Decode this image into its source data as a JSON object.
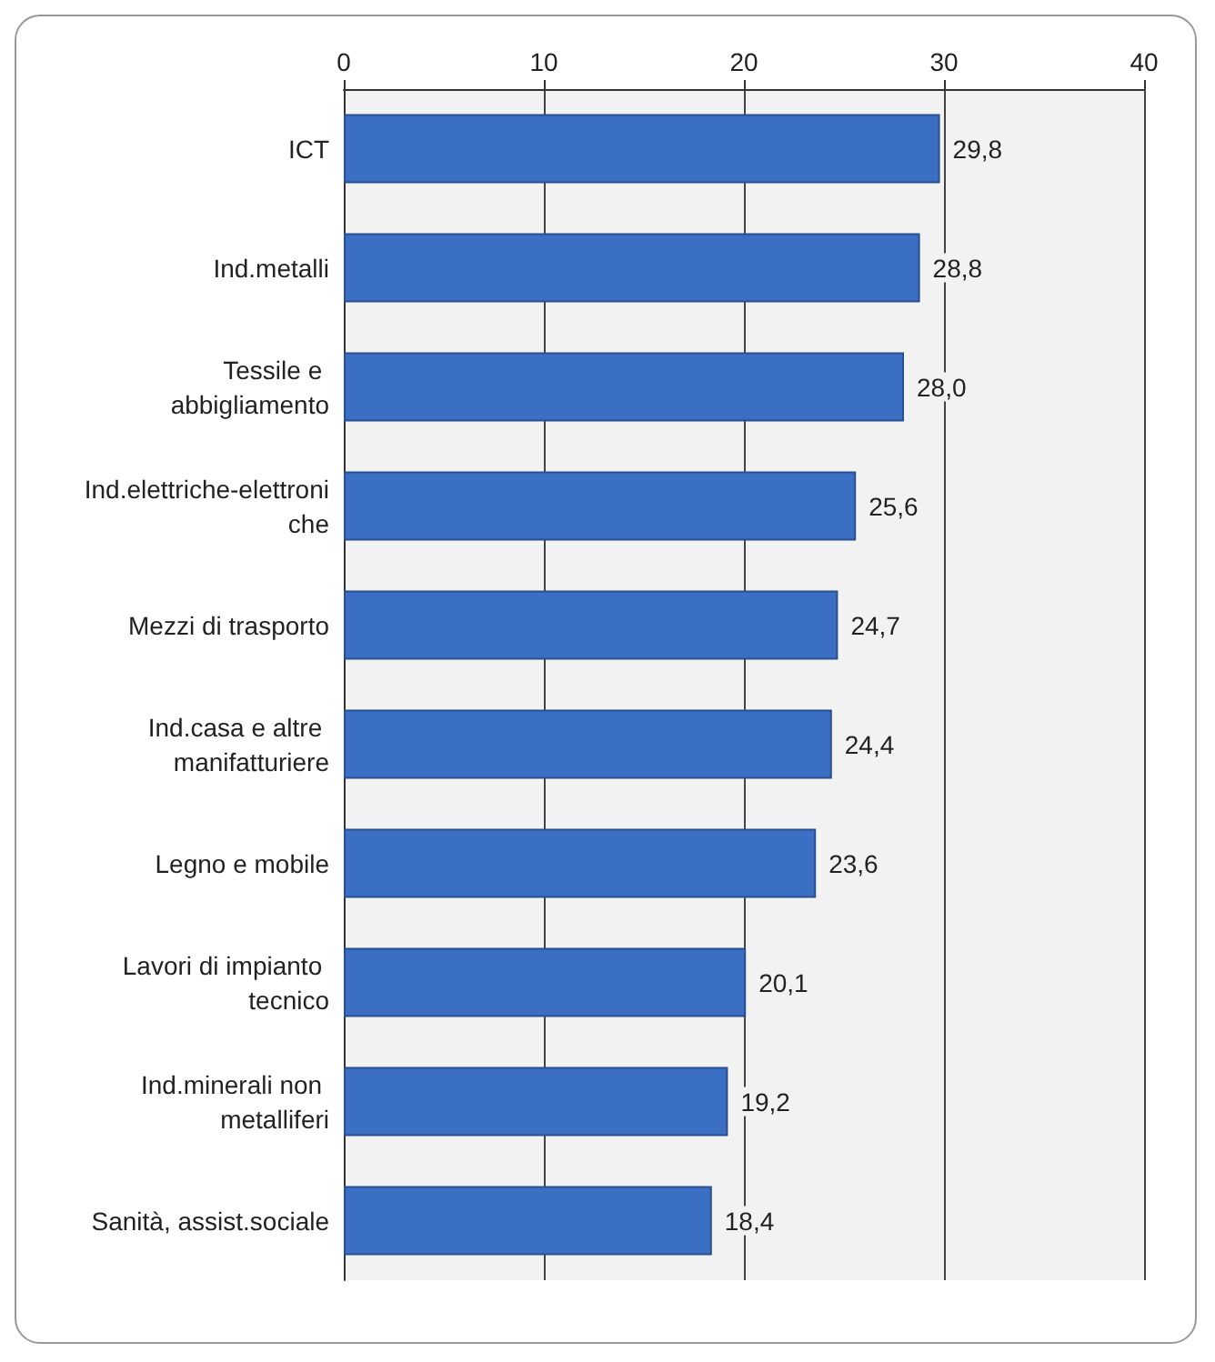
{
  "chart_data": {
    "type": "bar",
    "orientation": "horizontal",
    "categories": [
      "ICT",
      "Ind.metalli",
      "Tessile e abbigliamento",
      "Ind.elettriche-elettroniche",
      "Mezzi di trasporto",
      "Ind.casa e altre manifatturiere",
      "Legno e mobile",
      "Lavori di impianto tecnico",
      "Ind.minerali non metalliferi",
      "Sanità, assist.sociale"
    ],
    "values": [
      29.8,
      28.8,
      28.0,
      25.6,
      24.7,
      24.4,
      23.6,
      20.1,
      19.2,
      18.4
    ],
    "value_labels": [
      "29,8",
      "28,8",
      "28,0",
      "25,6",
      "24,7",
      "24,4",
      "23,6",
      "20,1",
      "19,2",
      "18,4"
    ],
    "color": "#3b6fc4",
    "xlim": [
      0,
      40
    ],
    "xticks": [
      0,
      10,
      20,
      30,
      40
    ],
    "grid": "x"
  }
}
